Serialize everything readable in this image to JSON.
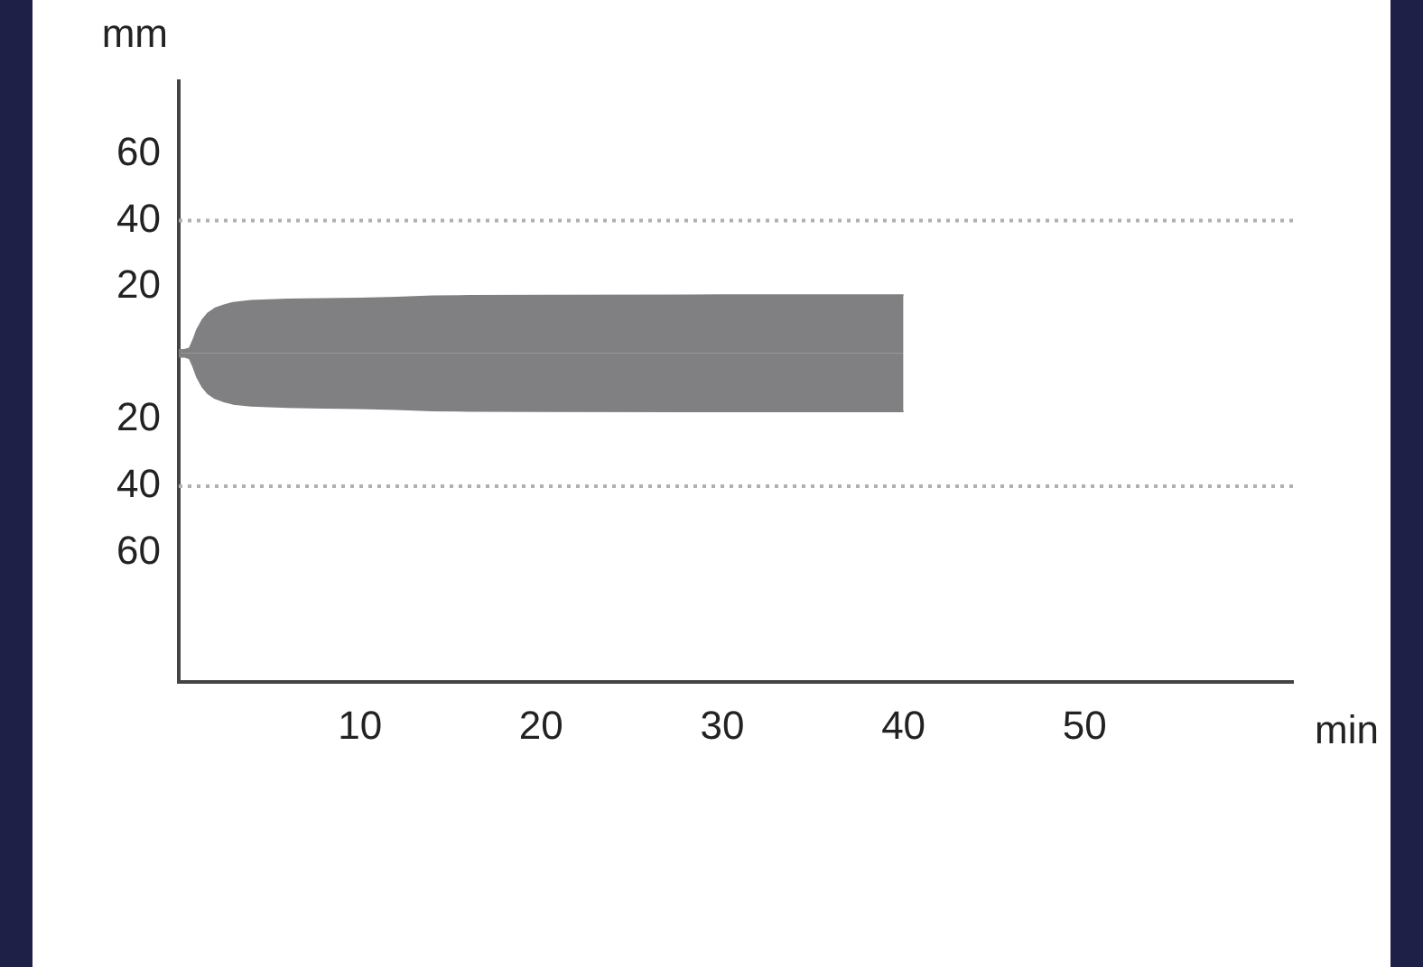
{
  "chart_data": {
    "type": "area",
    "xlabel": "min",
    "ylabel": "mm",
    "x": [
      0,
      0.3,
      0.6,
      0.8,
      1.0,
      1.3,
      1.6,
      2,
      2.5,
      3,
      4,
      6,
      8,
      10,
      12,
      14,
      16,
      20,
      30,
      40
    ],
    "series": [
      {
        "color": "#808083",
        "values": [
          1,
          1,
          1.5,
          4,
          7,
          10,
          12,
          13.5,
          14.5,
          15.2,
          15.8,
          16.2,
          16.4,
          16.5,
          16.8,
          17.2,
          17.3,
          17.4,
          17.5,
          17.5
        ]
      },
      {
        "color": "#808083",
        "values": [
          -1,
          -1,
          -1.5,
          -4,
          -7,
          -10,
          -12,
          -13.5,
          -14.5,
          -15.2,
          -15.8,
          -16.2,
          -16.4,
          -16.5,
          -16.8,
          -17.2,
          -17.3,
          -17.4,
          -17.5,
          -17.5
        ]
      }
    ],
    "xlim": [
      0,
      61.5
    ],
    "xticks": [
      10,
      20,
      30,
      40,
      50
    ],
    "ylim": [
      -99,
      82
    ],
    "yticks": [
      60,
      40,
      20,
      {
        "value": -20,
        "label": "20"
      },
      {
        "value": -40,
        "label": "40"
      },
      {
        "value": -60,
        "label": "60"
      }
    ],
    "ref_lines": [
      {
        "axis": "y",
        "value": 40,
        "color": "#b0b0b0",
        "line_style": "dotted"
      },
      {
        "axis": "y",
        "value": -40,
        "color": "#b0b0b0",
        "line_style": "dotted"
      }
    ],
    "grid": false,
    "legend": false
  }
}
